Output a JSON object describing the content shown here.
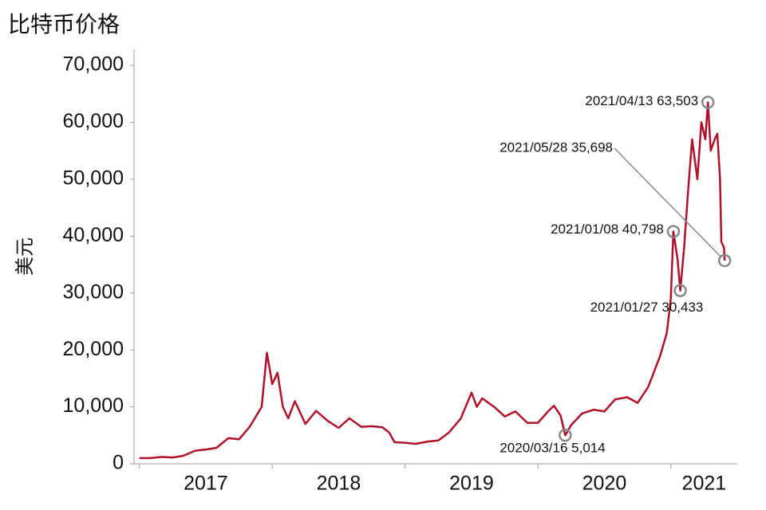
{
  "chart_data": {
    "type": "line",
    "title": "比特币价格",
    "y_label": "美元",
    "x": [
      2017.0,
      2017.08,
      2017.17,
      2017.25,
      2017.33,
      2017.42,
      2017.5,
      2017.58,
      2017.67,
      2017.75,
      2017.83,
      2017.92,
      2017.96,
      2018.0,
      2018.04,
      2018.08,
      2018.12,
      2018.17,
      2018.25,
      2018.33,
      2018.42,
      2018.5,
      2018.58,
      2018.67,
      2018.75,
      2018.83,
      2018.88,
      2018.92,
      2019.0,
      2019.08,
      2019.17,
      2019.25,
      2019.33,
      2019.42,
      2019.5,
      2019.54,
      2019.58,
      2019.67,
      2019.75,
      2019.83,
      2019.92,
      2020.0,
      2020.08,
      2020.12,
      2020.17,
      2020.205,
      2020.25,
      2020.33,
      2020.42,
      2020.5,
      2020.58,
      2020.67,
      2020.75,
      2020.83,
      2020.92,
      2020.97,
      2021.0,
      2021.019,
      2021.05,
      2021.071,
      2021.1,
      2021.13,
      2021.16,
      2021.2,
      2021.23,
      2021.26,
      2021.279,
      2021.3,
      2021.33,
      2021.35,
      2021.37,
      2021.38,
      2021.4,
      2021.405
    ],
    "series": [
      {
        "name": "比特币",
        "color": "#b0102a",
        "values": [
          1000,
          1000,
          1200,
          1100,
          1400,
          2300,
          2500,
          2800,
          4500,
          4300,
          6500,
          10000,
          19500,
          14000,
          16000,
          10000,
          8000,
          11000,
          7000,
          9300,
          7500,
          6300,
          8000,
          6500,
          6600,
          6400,
          5500,
          3800,
          3700,
          3500,
          3900,
          4100,
          5500,
          8000,
          12500,
          10000,
          11500,
          10000,
          8300,
          9200,
          7200,
          7200,
          9300,
          10200,
          8500,
          5014,
          6800,
          8800,
          9500,
          9200,
          11300,
          11700,
          10700,
          13500,
          19000,
          23000,
          29000,
          40798,
          36000,
          30433,
          38000,
          48000,
          57000,
          50000,
          60000,
          57000,
          63503,
          55000,
          57000,
          58000,
          50000,
          39000,
          38000,
          35698
        ]
      }
    ],
    "annotations": [
      {
        "label": "2021/04/13 63,503",
        "x": 2021.279,
        "y": 63503
      },
      {
        "label": "2021/05/28 35,698",
        "x": 2021.405,
        "y": 35698
      },
      {
        "label": "2021/01/08 40,798",
        "x": 2021.019,
        "y": 40798
      },
      {
        "label": "2021/01/27 30,433",
        "x": 2021.071,
        "y": 30433
      },
      {
        "label": "2020/03/16 5,014",
        "x": 2020.205,
        "y": 5014
      }
    ],
    "xlim": [
      2016.96,
      2021.5
    ],
    "xticks": [
      2017,
      2018,
      2019,
      2020,
      2021
    ],
    "ylim": [
      0,
      70000
    ],
    "yticks": [
      0,
      {
        "value": 10000,
        "label": "10,000"
      },
      {
        "value": 20000,
        "label": "20,000"
      },
      {
        "value": 30000,
        "label": "30,000"
      },
      {
        "value": 40000,
        "label": "40,000"
      },
      {
        "value": 50000,
        "label": "50,000"
      },
      {
        "value": 60000,
        "label": "60,000"
      },
      {
        "value": 70000,
        "label": "70,000"
      }
    ]
  }
}
